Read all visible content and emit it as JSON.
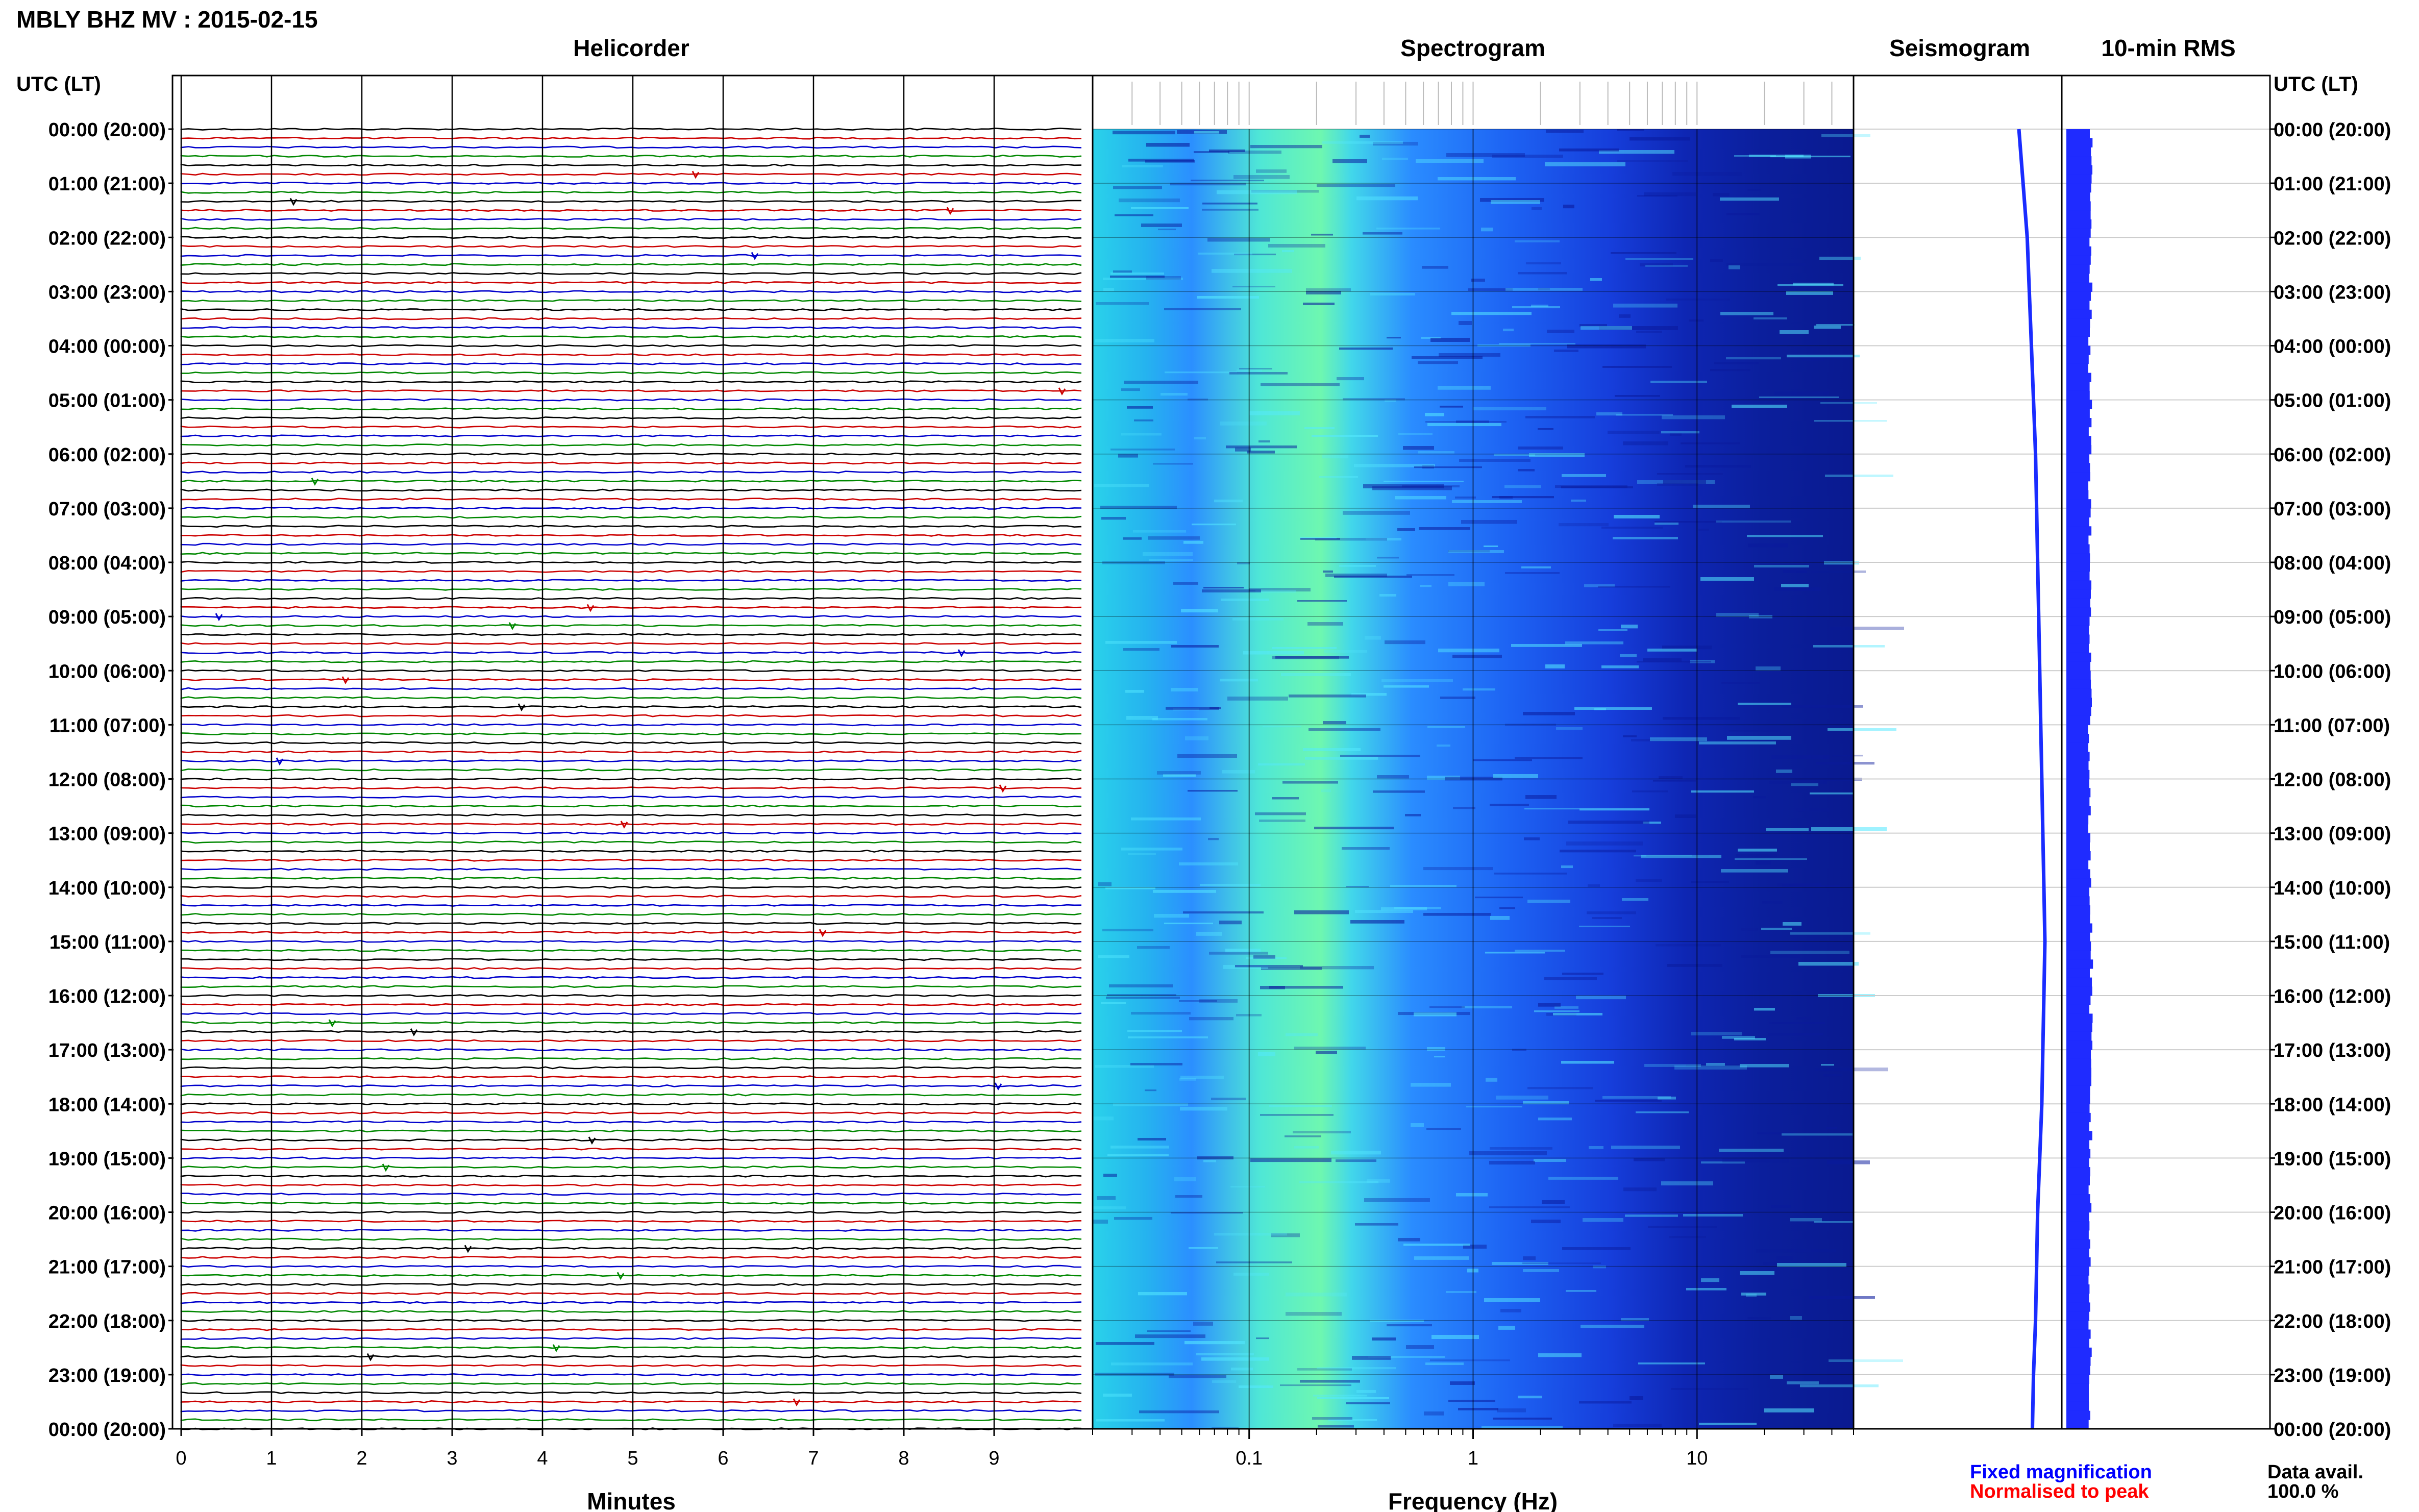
{
  "title": "MBLY BHZ MV : 2015-02-15",
  "panels": {
    "helicorder": "Helicorder",
    "spectrogram": "Spectrogram",
    "seismogram": "Seismogram",
    "rms": "10-min RMS"
  },
  "time_axis": {
    "header_left": "UTC (LT)",
    "header_right": "UTC (LT)",
    "labels": [
      "00:00 (20:00)",
      "01:00 (21:00)",
      "02:00 (22:00)",
      "03:00 (23:00)",
      "04:00 (00:00)",
      "05:00 (01:00)",
      "06:00 (02:00)",
      "07:00 (03:00)",
      "08:00 (04:00)",
      "09:00 (05:00)",
      "10:00 (06:00)",
      "11:00 (07:00)",
      "12:00 (08:00)",
      "13:00 (09:00)",
      "14:00 (10:00)",
      "15:00 (11:00)",
      "16:00 (12:00)",
      "17:00 (13:00)",
      "18:00 (14:00)",
      "19:00 (15:00)",
      "20:00 (16:00)",
      "21:00 (17:00)",
      "22:00 (18:00)",
      "23:00 (19:00)",
      "00:00 (20:00)"
    ]
  },
  "footer": {
    "xlabel_minutes": "Minutes",
    "xlabel_frequency": "Frequency (Hz)",
    "legend_fixed": "Fixed magnification",
    "legend_normalised": "Normalised to peak",
    "data_avail_label": "Data avail.",
    "data_avail_value": "100.0 %"
  },
  "colors": {
    "fixed": "#0000ff",
    "normalised": "#ff0000",
    "trace_cycle": [
      "#000000",
      "#cc0000",
      "#0000cc",
      "#008800"
    ],
    "spectrogram_dark": "#0a1aa8",
    "spectrogram_mid": "#1f6bff",
    "spectrogram_light": "#3ff0e6",
    "spectrogram_peak": "#9fff6a"
  },
  "chart_data": [
    {
      "type": "line",
      "name": "helicorder",
      "x_range_minutes": [
        0,
        10
      ],
      "x_ticks": [
        0,
        1,
        2,
        3,
        4,
        5,
        6,
        7,
        8,
        9
      ],
      "rows_per_hour": 6,
      "hours": 24
    },
    {
      "type": "heatmap",
      "name": "spectrogram",
      "x_scale": "log",
      "x_range_hz": [
        0.02,
        50
      ],
      "x_tick_labels": [
        "0.1",
        "1",
        "10"
      ],
      "x_tick_values": [
        0.1,
        1,
        10
      ],
      "low_band_peak_hz": 0.3
    },
    {
      "type": "line",
      "name": "seismogram",
      "trend": "slow drift",
      "x_offsets": [
        0.5,
        0.52,
        0.54,
        0.55,
        0.56,
        0.57,
        0.58,
        0.585,
        0.59,
        0.595,
        0.6,
        0.605,
        0.61,
        0.615,
        0.62,
        0.625,
        0.62,
        0.615,
        0.61,
        0.6,
        0.59,
        0.585,
        0.58,
        0.57,
        0.565
      ]
    },
    {
      "type": "bar",
      "name": "rms",
      "values_relative": [
        0.8,
        0.78,
        0.79,
        0.77,
        0.76,
        0.78,
        0.77,
        0.76,
        0.78,
        0.77,
        0.79,
        0.76,
        0.77,
        0.75,
        0.8,
        0.82,
        0.8,
        0.78,
        0.79,
        0.77,
        0.76,
        0.78,
        0.77,
        0.76,
        0.78
      ]
    }
  ]
}
